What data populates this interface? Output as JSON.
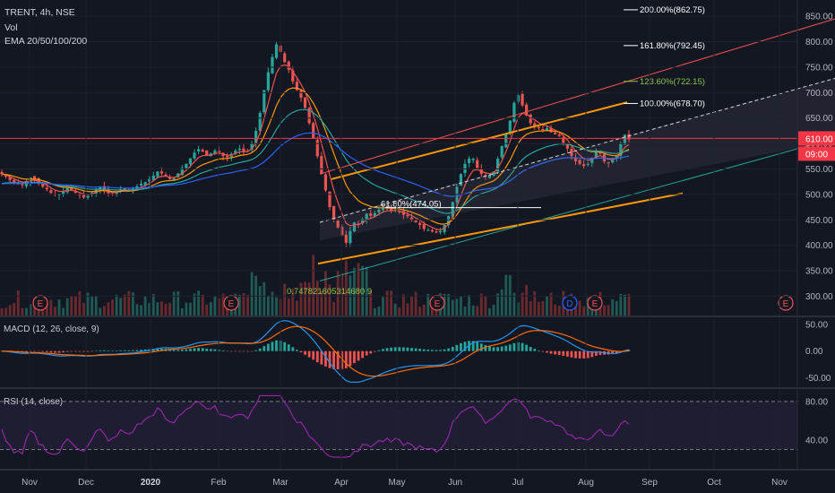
{
  "header": {
    "symbol_line": "TRENT, 4h, NSE",
    "vol_label": "Vol",
    "ema_label": "EMA 20/50/100/200"
  },
  "colors": {
    "background": "#131722",
    "up": "#26a69a",
    "down": "#ef5350",
    "ema20": "#ef5350",
    "ema50": "#ff9800",
    "ema100": "#26a69a",
    "ema200": "#2962ff",
    "fib": "#ffffff",
    "channel_orange": "#ff9800",
    "macd_line": "#2196f3",
    "signal_line": "#ff6d00",
    "rsi_line": "#9c27b0",
    "price_tag": "#f23645"
  },
  "chart_data": [
    {
      "type": "candlestick",
      "panel": "price",
      "y_ticks": [
        "850.00",
        "800.00",
        "750.00",
        "700.00",
        "650.00",
        "600.00",
        "550.00",
        "500.00",
        "450.00",
        "400.00",
        "350.00",
        "300.00"
      ],
      "ylim": [
        262,
        882
      ],
      "x_ticks": [
        "Nov",
        "Dec",
        "2020",
        "Feb",
        "Mar",
        "Apr",
        "May",
        "Jun",
        "Jul",
        "Aug",
        "Sep",
        "Oct",
        "Nov"
      ],
      "price_label": "610.00",
      "countdown_label": "09:00",
      "fib_levels": [
        {
          "label": "200.00%(862.75)",
          "price": 862.75
        },
        {
          "label": "161.80%(792.45)",
          "price": 792.45
        },
        {
          "label": "123.60%(722.15)",
          "price": 722.15
        },
        {
          "label": "100.00%(678.70)",
          "price": 678.7
        },
        {
          "label": "61.80%(474.05)",
          "price": 474.05
        }
      ],
      "annotation": "0.747821605314680 9",
      "events": [
        "E",
        "E",
        "E",
        "D",
        "E",
        "E"
      ],
      "closes": [
        540,
        535,
        528,
        522,
        520,
        518,
        526,
        533,
        529,
        521,
        515,
        510,
        503,
        499,
        501,
        506,
        512,
        509,
        503,
        498,
        494,
        497,
        503,
        511,
        514,
        508,
        502,
        500,
        504,
        510,
        509,
        506,
        511,
        516,
        521,
        524,
        530,
        537,
        545,
        541,
        536,
        530,
        532,
        541,
        552,
        560,
        571,
        582,
        589,
        584,
        577,
        580,
        586,
        582,
        575,
        573,
        579,
        586,
        590,
        584,
        585,
        600,
        625,
        660,
        705,
        740,
        770,
        795,
        780,
        760,
        745,
        722,
        705,
        690,
        670,
        640,
        610,
        575,
        540,
        508,
        475,
        450,
        435,
        420,
        405,
        428,
        445,
        440,
        452,
        462,
        458,
        463,
        470,
        475,
        472,
        468,
        470,
        465,
        460,
        457,
        450,
        445,
        440,
        432,
        430,
        427,
        425,
        428,
        440,
        458,
        485,
        515,
        540,
        560,
        570,
        570,
        552,
        540,
        535,
        538,
        545,
        570,
        595,
        620,
        645,
        680,
        695,
        675,
        655,
        640,
        635,
        630,
        628,
        630,
        622,
        618,
        615,
        600,
        590,
        575,
        565,
        560,
        556,
        560,
        572,
        585,
        580,
        565,
        562,
        568,
        575,
        600,
        617,
        608
      ]
    },
    {
      "type": "histogram+line",
      "panel": "macd",
      "label": "MACD (12, 26, close, 9)",
      "y_ticks": [
        "50.00",
        "0.00",
        "-50.00"
      ],
      "ylim": [
        -68,
        62
      ]
    },
    {
      "type": "line",
      "panel": "rsi",
      "label": "RSI (14, close)",
      "y_ticks": [
        "80.00",
        "40.00"
      ],
      "ylim": [
        10,
        92
      ],
      "bands": [
        80,
        30
      ]
    }
  ]
}
